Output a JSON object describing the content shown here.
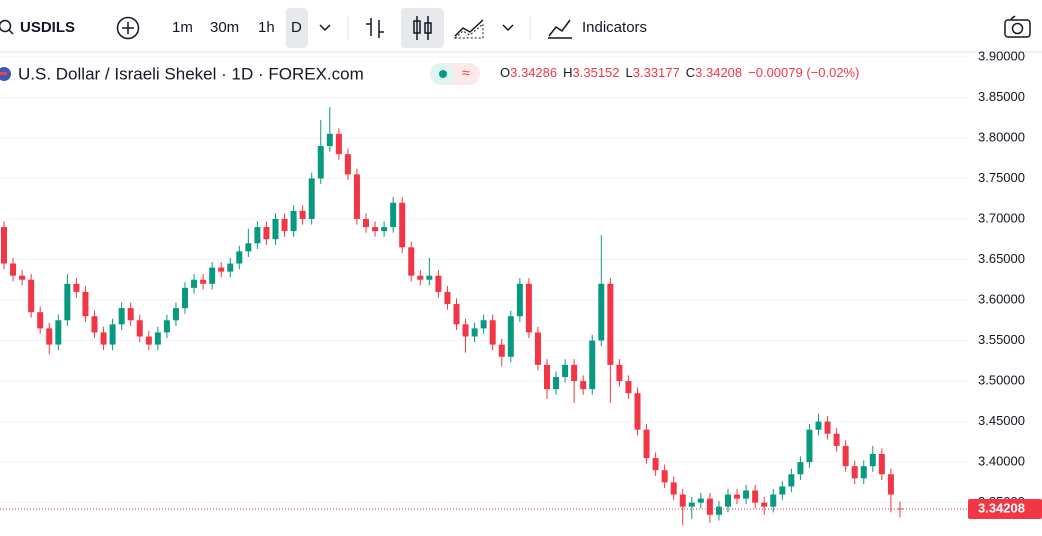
{
  "toolbar": {
    "symbol": "USDILS",
    "intervals": [
      "1m",
      "30m",
      "1h",
      "D"
    ],
    "indicators": "Indicators"
  },
  "chart_data": {
    "type": "candlestick",
    "title": "U.S. Dollar / Israeli Shekel · 1D · FOREX.com",
    "legend_letters": [
      "O",
      "H",
      "L",
      "C"
    ],
    "change_label": "−0.00079 (−0.02%)",
    "up_color": "#089981",
    "down_color": "#f23645",
    "ylim": [
      3.315,
      3.906
    ],
    "yticks": [
      {
        "value": 3.9,
        "label": "3.90000"
      },
      {
        "value": 3.85,
        "label": "3.85000"
      },
      {
        "value": 3.8,
        "label": "3.80000"
      },
      {
        "value": 3.75,
        "label": "3.75000"
      },
      {
        "value": 3.7,
        "label": "3.70000"
      },
      {
        "value": 3.65,
        "label": "3.65000"
      },
      {
        "value": 3.6,
        "label": "3.60000"
      },
      {
        "value": 3.55,
        "label": "3.55000"
      },
      {
        "value": 3.5,
        "label": "3.50000"
      },
      {
        "value": 3.45,
        "label": "3.45000"
      },
      {
        "value": 3.4,
        "label": "3.40000"
      },
      {
        "value": 3.35,
        "label": "3.35000"
      }
    ],
    "grid": true,
    "open": [
      3.69,
      3.645,
      3.63,
      3.625,
      3.585,
      3.565,
      3.545,
      3.575,
      3.62,
      3.61,
      3.58,
      3.56,
      3.545,
      3.57,
      3.59,
      3.575,
      3.555,
      3.545,
      3.56,
      3.575,
      3.59,
      3.615,
      3.625,
      3.62,
      3.64,
      3.635,
      3.645,
      3.66,
      3.67,
      3.69,
      3.675,
      3.7,
      3.685,
      3.71,
      3.7,
      3.75,
      3.79,
      3.805,
      3.78,
      3.755,
      3.7,
      3.69,
      3.685,
      3.69,
      3.72,
      3.665,
      3.63,
      3.625,
      3.63,
      3.61,
      3.595,
      3.57,
      3.555,
      3.565,
      3.575,
      3.545,
      3.53,
      3.58,
      3.62,
      3.56,
      3.52,
      3.49,
      3.505,
      3.52,
      3.5,
      3.49,
      3.55,
      3.62,
      3.52,
      3.5,
      3.485,
      3.44,
      3.405,
      3.39,
      3.375,
      3.36,
      3.345,
      3.35,
      3.355,
      3.335,
      3.345,
      3.36,
      3.355,
      3.365,
      3.35,
      3.345,
      3.36,
      3.37,
      3.385,
      3.4,
      3.44,
      3.45,
      3.435,
      3.42,
      3.395,
      3.38,
      3.395,
      3.41,
      3.385,
      3.34286
    ],
    "high": [
      3.697,
      3.652,
      3.637,
      3.632,
      3.592,
      3.572,
      3.582,
      3.632,
      3.627,
      3.617,
      3.587,
      3.567,
      3.577,
      3.597,
      3.597,
      3.582,
      3.562,
      3.567,
      3.582,
      3.597,
      3.622,
      3.632,
      3.632,
      3.647,
      3.647,
      3.652,
      3.667,
      3.688,
      3.697,
      3.697,
      3.707,
      3.707,
      3.717,
      3.717,
      3.757,
      3.822,
      3.838,
      3.812,
      3.787,
      3.762,
      3.707,
      3.697,
      3.697,
      3.727,
      3.727,
      3.672,
      3.637,
      3.652,
      3.637,
      3.617,
      3.602,
      3.577,
      3.572,
      3.582,
      3.582,
      3.552,
      3.587,
      3.627,
      3.627,
      3.567,
      3.527,
      3.512,
      3.527,
      3.527,
      3.507,
      3.557,
      3.68,
      3.627,
      3.527,
      3.507,
      3.492,
      3.447,
      3.412,
      3.397,
      3.382,
      3.367,
      3.357,
      3.362,
      3.362,
      3.352,
      3.367,
      3.367,
      3.372,
      3.372,
      3.357,
      3.367,
      3.377,
      3.392,
      3.407,
      3.447,
      3.46,
      3.457,
      3.442,
      3.427,
      3.402,
      3.402,
      3.42,
      3.417,
      3.392,
      3.35152
    ],
    "low": [
      3.638,
      3.623,
      3.618,
      3.578,
      3.558,
      3.533,
      3.538,
      3.568,
      3.603,
      3.573,
      3.553,
      3.538,
      3.538,
      3.563,
      3.568,
      3.548,
      3.538,
      3.538,
      3.553,
      3.568,
      3.583,
      3.608,
      3.613,
      3.613,
      3.628,
      3.628,
      3.638,
      3.653,
      3.663,
      3.668,
      3.668,
      3.678,
      3.678,
      3.693,
      3.693,
      3.743,
      3.783,
      3.773,
      3.748,
      3.693,
      3.683,
      3.678,
      3.678,
      3.683,
      3.658,
      3.623,
      3.618,
      3.618,
      3.603,
      3.588,
      3.563,
      3.535,
      3.548,
      3.558,
      3.538,
      3.518,
      3.523,
      3.573,
      3.553,
      3.513,
      3.478,
      3.483,
      3.498,
      3.473,
      3.483,
      3.483,
      3.543,
      3.473,
      3.493,
      3.478,
      3.433,
      3.398,
      3.383,
      3.368,
      3.353,
      3.322,
      3.33,
      3.343,
      3.325,
      3.328,
      3.338,
      3.348,
      3.348,
      3.343,
      3.335,
      3.338,
      3.353,
      3.363,
      3.378,
      3.393,
      3.433,
      3.428,
      3.413,
      3.388,
      3.373,
      3.373,
      3.388,
      3.378,
      3.338,
      3.33177
    ],
    "close": [
      3.645,
      3.63,
      3.625,
      3.585,
      3.565,
      3.545,
      3.575,
      3.62,
      3.61,
      3.58,
      3.56,
      3.545,
      3.57,
      3.59,
      3.575,
      3.555,
      3.545,
      3.56,
      3.575,
      3.59,
      3.615,
      3.625,
      3.62,
      3.64,
      3.635,
      3.645,
      3.66,
      3.67,
      3.69,
      3.675,
      3.7,
      3.685,
      3.71,
      3.7,
      3.75,
      3.79,
      3.805,
      3.78,
      3.755,
      3.7,
      3.69,
      3.685,
      3.69,
      3.72,
      3.665,
      3.63,
      3.625,
      3.63,
      3.61,
      3.595,
      3.57,
      3.555,
      3.565,
      3.575,
      3.545,
      3.53,
      3.58,
      3.62,
      3.56,
      3.52,
      3.49,
      3.505,
      3.52,
      3.5,
      3.49,
      3.55,
      3.62,
      3.52,
      3.5,
      3.485,
      3.44,
      3.405,
      3.39,
      3.375,
      3.36,
      3.345,
      3.35,
      3.355,
      3.335,
      3.345,
      3.36,
      3.355,
      3.365,
      3.35,
      3.345,
      3.36,
      3.37,
      3.385,
      3.4,
      3.44,
      3.45,
      3.435,
      3.42,
      3.395,
      3.38,
      3.395,
      3.41,
      3.385,
      3.36,
      3.34208
    ]
  }
}
